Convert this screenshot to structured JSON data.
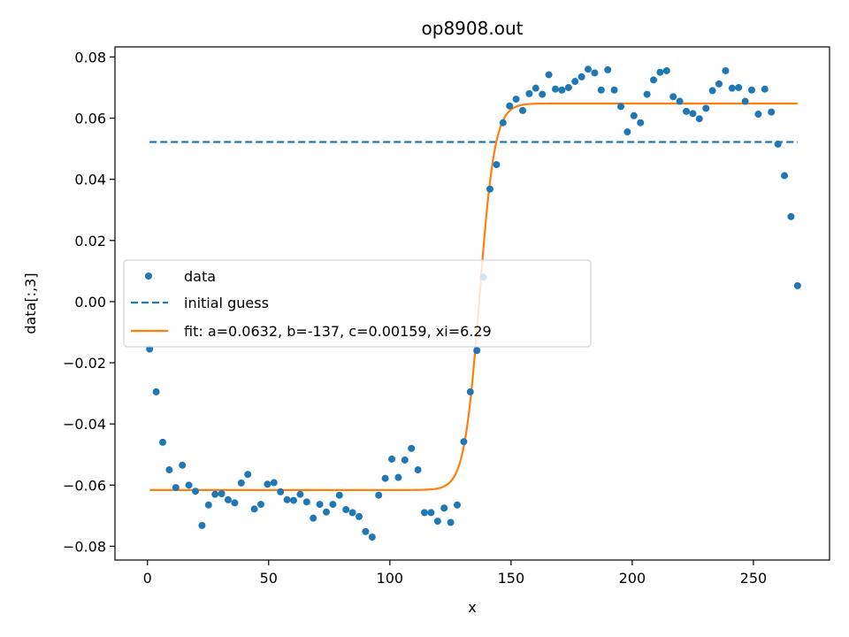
{
  "chart_data": {
    "type": "scatter",
    "title": "op8908.out",
    "xlabel": "x",
    "ylabel": "data[:,3]",
    "xlim": [
      -13.4,
      281.4
    ],
    "ylim": [
      -0.0845,
      0.0833
    ],
    "xticks": [
      0,
      50,
      100,
      150,
      200,
      250
    ],
    "xtick_labels": [
      "0",
      "50",
      "100",
      "150",
      "200",
      "250"
    ],
    "yticks": [
      -0.08,
      -0.06,
      -0.04,
      -0.02,
      0.0,
      0.02,
      0.04,
      0.06,
      0.08
    ],
    "ytick_labels": [
      "−0.08",
      "−0.06",
      "−0.04",
      "−0.02",
      "0.00",
      "0.02",
      "0.04",
      "0.06",
      "0.08"
    ],
    "grid": false,
    "legend_position": "center-left",
    "colors": {
      "data": "#1f77b4",
      "initial_guess": "#1f77b4",
      "fit": "#ff7f0e"
    },
    "series": [
      {
        "name": "data",
        "kind": "scatter",
        "x": [
          0.9,
          3.6,
          6.3,
          9.0,
          11.7,
          14.4,
          17.1,
          19.8,
          22.5,
          25.2,
          27.9,
          30.6,
          33.3,
          36.0,
          38.7,
          41.4,
          44.1,
          46.8,
          49.5,
          52.2,
          54.9,
          57.6,
          60.3,
          63.0,
          65.7,
          68.4,
          71.1,
          73.8,
          76.5,
          79.2,
          81.9,
          84.6,
          87.3,
          90.0,
          92.7,
          95.4,
          98.1,
          100.8,
          103.5,
          106.2,
          108.9,
          111.6,
          114.3,
          117.0,
          119.7,
          122.4,
          125.1,
          127.8,
          130.5,
          133.2,
          135.9,
          138.6,
          141.3,
          144.0,
          146.7,
          149.4,
          152.1,
          154.8,
          157.5,
          160.2,
          162.9,
          165.6,
          168.3,
          171.0,
          173.7,
          176.4,
          179.1,
          181.8,
          184.5,
          187.2,
          189.9,
          192.6,
          195.3,
          198.0,
          200.7,
          203.4,
          206.1,
          208.8,
          211.5,
          214.2,
          216.9,
          219.6,
          222.3,
          225.0,
          227.7,
          230.4,
          233.1,
          235.8,
          238.5,
          241.2,
          243.9,
          246.6,
          249.3,
          252.0,
          254.7,
          257.4,
          260.1,
          262.8,
          265.5,
          268.2
        ],
        "y": [
          -0.0155,
          -0.0295,
          -0.046,
          -0.055,
          -0.0608,
          -0.0535,
          -0.06,
          -0.062,
          -0.0732,
          -0.0665,
          -0.063,
          -0.0628,
          -0.0648,
          -0.0658,
          -0.0593,
          -0.0565,
          -0.0678,
          -0.0663,
          -0.0597,
          -0.0592,
          -0.0622,
          -0.0648,
          -0.065,
          -0.063,
          -0.0655,
          -0.0708,
          -0.0663,
          -0.0688,
          -0.0663,
          -0.0633,
          -0.068,
          -0.069,
          -0.0703,
          -0.0752,
          -0.077,
          -0.0633,
          -0.0578,
          -0.0515,
          -0.0575,
          -0.0518,
          -0.048,
          -0.055,
          -0.069,
          -0.069,
          -0.0718,
          -0.0675,
          -0.0722,
          -0.0665,
          -0.0458,
          -0.0295,
          -0.016,
          0.008,
          0.0368,
          0.0448,
          0.0585,
          0.064,
          0.0662,
          0.0625,
          0.068,
          0.0698,
          0.0678,
          0.0742,
          0.0695,
          0.0692,
          0.07,
          0.072,
          0.0735,
          0.076,
          0.0748,
          0.0692,
          0.0758,
          0.0692,
          0.0638,
          0.0555,
          0.0608,
          0.0585,
          0.0678,
          0.0725,
          0.075,
          0.0755,
          0.067,
          0.0655,
          0.0622,
          0.0615,
          0.0598,
          0.0632,
          0.069,
          0.0712,
          0.0755,
          0.0698,
          0.07,
          0.0655,
          0.0692,
          0.0613,
          0.0695,
          0.062,
          0.0515,
          0.0412,
          0.0278,
          0.0052
        ]
      },
      {
        "name": "initial guess",
        "kind": "line",
        "dash": "dashed",
        "x": [
          0.9,
          268.2
        ],
        "y": [
          0.0522,
          0.0522
        ]
      },
      {
        "name": "fit: a=0.0632, b=-137, c=0.00159, xi=6.29",
        "kind": "line",
        "model": {
          "a": 0.0632,
          "b": -137,
          "c": 0.00159,
          "xi": 6.29
        },
        "x_range": [
          0.9,
          268.2
        ]
      }
    ]
  }
}
